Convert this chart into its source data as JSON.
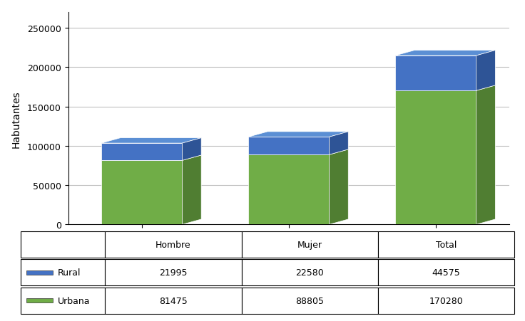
{
  "categories": [
    "Hombre",
    "Mujer",
    "Total"
  ],
  "rural": [
    21995,
    22580,
    44575
  ],
  "urbana": [
    81475,
    88805,
    170280
  ],
  "rural_color_front": "#4472C4",
  "rural_color_top": "#5B8FD4",
  "rural_color_side": "#2E5496",
  "urbana_color_front": "#70AD47",
  "urbana_color_top": "#8DC468",
  "urbana_color_side": "#507E32",
  "ylabel": "Habutantes",
  "ylim": [
    0,
    270000
  ],
  "yticks": [
    0,
    50000,
    100000,
    150000,
    200000,
    250000
  ],
  "table_header": [
    "",
    "Hombre",
    "Mujer",
    "Total"
  ],
  "table_row1": [
    "Rural",
    "21995",
    "22580",
    "44575"
  ],
  "table_row2": [
    "Urbana",
    "81475",
    "88805",
    "170280"
  ],
  "background_color": "#FFFFFF",
  "grid_color": "#C0C0C0"
}
